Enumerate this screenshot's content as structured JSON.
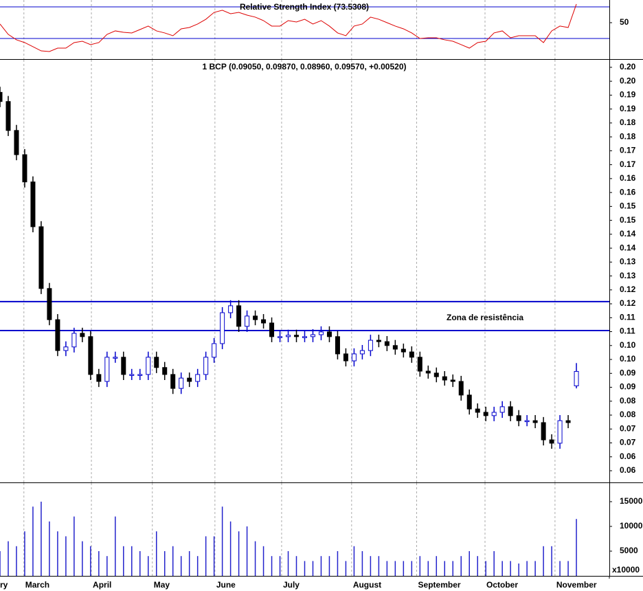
{
  "chart_data": [
    {
      "type": "line",
      "title": "Relative Strength Index (73.5308)",
      "color": "#dd0000",
      "values": [
        48.3,
        35.2,
        28.3,
        24.8,
        19.6,
        14.3,
        13.5,
        17.8,
        17.8,
        24.8,
        26.5,
        22.2,
        24.8,
        35.2,
        39.6,
        37.8,
        37,
        41.3,
        45.7,
        39.6,
        37,
        33.5,
        42.2,
        43.9,
        48.3,
        54.3,
        63,
        65.7,
        61.3,
        63,
        59.6,
        57,
        52.6,
        45.7,
        45.7,
        52.6,
        50.9,
        54.3,
        48.3,
        52.6,
        45.7,
        37,
        33.5,
        45.7,
        48.3,
        57,
        54.3,
        50,
        45.7,
        42.2,
        37,
        30,
        30.9,
        30.9,
        28.3,
        26.5,
        22.2,
        17.8,
        24.8,
        26.5,
        37,
        39.6,
        30.9,
        33.5,
        33.5,
        33.5,
        24.8,
        39.6,
        45.7,
        43.9,
        73.5308
      ],
      "xlim": [
        0,
        74
      ],
      "ylim": [
        3.9,
        78.7
      ],
      "yticks": [
        50
      ],
      "hlines": [
        70,
        30
      ],
      "hline_color": "#0000cc"
    },
    {
      "type": "candlestick",
      "title": "1 BCP (0.09050, 0.09870, 0.08960, 0.09570, +0.00520)",
      "up_color": "#0000cc",
      "down_color": "#000000",
      "open": [
        0.196,
        0.1927,
        0.1823,
        0.1736,
        0.1638,
        0.1477,
        0.1255,
        0.1143,
        0.1032,
        0.1045,
        0.1094,
        0.1082,
        0.0946,
        0.0921,
        0.1008,
        0.1008,
        0.0946,
        0.0946,
        0.0946,
        0.1008,
        0.0971,
        0.0946,
        0.0896,
        0.0933,
        0.0921,
        0.0946,
        0.1008,
        0.1057,
        0.1168,
        0.1193,
        0.1119,
        0.1156,
        0.1143,
        0.1131,
        0.1082,
        0.1082,
        0.1087,
        0.1082,
        0.1082,
        0.1089,
        0.1099,
        0.1082,
        0.102,
        0.0995,
        0.102,
        0.1032,
        0.1069,
        0.1064,
        0.105,
        0.1037,
        0.1027,
        0.1008,
        0.0958,
        0.0951,
        0.0938,
        0.0926,
        0.0921,
        0.0872,
        0.0822,
        0.081,
        0.0798,
        0.081,
        0.083,
        0.0798,
        0.078,
        0.078,
        0.0773,
        0.0711,
        0.0699,
        0.078,
        0.0905
      ],
      "high": [
        0.198,
        0.1947,
        0.1843,
        0.1756,
        0.1658,
        0.1497,
        0.1275,
        0.1163,
        0.1065,
        0.1114,
        0.1114,
        0.1102,
        0.0966,
        0.1028,
        0.1028,
        0.1028,
        0.0966,
        0.0966,
        0.1028,
        0.1028,
        0.0991,
        0.0966,
        0.0953,
        0.0953,
        0.0966,
        0.1028,
        0.1077,
        0.1188,
        0.1213,
        0.1213,
        0.1176,
        0.1176,
        0.1163,
        0.1151,
        0.1102,
        0.1107,
        0.1107,
        0.1102,
        0.1109,
        0.1119,
        0.1119,
        0.1102,
        0.104,
        0.104,
        0.1052,
        0.1089,
        0.1089,
        0.1084,
        0.107,
        0.1057,
        0.1047,
        0.1028,
        0.0978,
        0.0971,
        0.0958,
        0.0946,
        0.0941,
        0.0892,
        0.0842,
        0.083,
        0.083,
        0.085,
        0.085,
        0.0818,
        0.08,
        0.08,
        0.0793,
        0.0731,
        0.08,
        0.08,
        0.0987
      ],
      "low": [
        0.1907,
        0.1803,
        0.1716,
        0.1618,
        0.1457,
        0.1235,
        0.1123,
        0.1012,
        0.1012,
        0.1025,
        0.1062,
        0.0926,
        0.0901,
        0.0901,
        0.0988,
        0.0926,
        0.0926,
        0.0926,
        0.0926,
        0.0951,
        0.0926,
        0.0876,
        0.0876,
        0.0901,
        0.0901,
        0.0926,
        0.0988,
        0.1037,
        0.1148,
        0.1099,
        0.1099,
        0.1123,
        0.1111,
        0.1062,
        0.1062,
        0.1062,
        0.1062,
        0.1062,
        0.1062,
        0.1069,
        0.1062,
        0.1,
        0.0975,
        0.0975,
        0.1,
        0.1012,
        0.1044,
        0.103,
        0.1017,
        0.1007,
        0.0988,
        0.0938,
        0.0931,
        0.0918,
        0.0906,
        0.0901,
        0.0852,
        0.0802,
        0.079,
        0.0778,
        0.0778,
        0.079,
        0.0778,
        0.076,
        0.076,
        0.0753,
        0.0691,
        0.0679,
        0.0679,
        0.0753,
        0.0896
      ],
      "close": [
        0.1927,
        0.1823,
        0.1736,
        0.1638,
        0.1477,
        0.1255,
        0.1143,
        0.1032,
        0.1045,
        0.1094,
        0.1082,
        0.0946,
        0.0921,
        0.1008,
        0.1008,
        0.0946,
        0.0946,
        0.0946,
        0.1008,
        0.0971,
        0.0946,
        0.0896,
        0.0933,
        0.0921,
        0.0946,
        0.1008,
        0.1057,
        0.1168,
        0.1193,
        0.1119,
        0.1156,
        0.1143,
        0.1131,
        0.1082,
        0.1082,
        0.1087,
        0.1082,
        0.1082,
        0.1089,
        0.1099,
        0.1082,
        0.102,
        0.0995,
        0.102,
        0.1032,
        0.1069,
        0.1064,
        0.105,
        0.1037,
        0.1027,
        0.1008,
        0.0958,
        0.0951,
        0.0938,
        0.0926,
        0.0921,
        0.0872,
        0.0822,
        0.081,
        0.0798,
        0.081,
        0.083,
        0.0798,
        0.078,
        0.078,
        0.0773,
        0.0711,
        0.0699,
        0.078,
        0.0773,
        0.0957
      ],
      "xlim": [
        0,
        74
      ],
      "ylim": [
        0.0558,
        0.2077
      ],
      "yticks": [
        {
          "value": 0.06,
          "label": "0.06"
        },
        {
          "value": 0.065,
          "label": "0.06"
        },
        {
          "value": 0.07,
          "label": "0.07"
        },
        {
          "value": 0.075,
          "label": "0.07"
        },
        {
          "value": 0.08,
          "label": "0.08"
        },
        {
          "value": 0.085,
          "label": "0.08"
        },
        {
          "value": 0.09,
          "label": "0.09"
        },
        {
          "value": 0.095,
          "label": "0.09"
        },
        {
          "value": 0.1,
          "label": "0.10"
        },
        {
          "value": 0.105,
          "label": "0.10"
        },
        {
          "value": 0.11,
          "label": "0.11"
        },
        {
          "value": 0.115,
          "label": "0.11"
        },
        {
          "value": 0.12,
          "label": "0.12"
        },
        {
          "value": 0.125,
          "label": "0.12"
        },
        {
          "value": 0.13,
          "label": "0.13"
        },
        {
          "value": 0.135,
          "label": "0.13"
        },
        {
          "value": 0.14,
          "label": "0.14"
        },
        {
          "value": 0.145,
          "label": "0.14"
        },
        {
          "value": 0.15,
          "label": "0.15"
        },
        {
          "value": 0.155,
          "label": "0.15"
        },
        {
          "value": 0.16,
          "label": "0.16"
        },
        {
          "value": 0.165,
          "label": "0.16"
        },
        {
          "value": 0.17,
          "label": "0.17"
        },
        {
          "value": 0.175,
          "label": "0.17"
        },
        {
          "value": 0.18,
          "label": "0.18"
        },
        {
          "value": 0.185,
          "label": "0.18"
        },
        {
          "value": 0.19,
          "label": "0.19"
        },
        {
          "value": 0.195,
          "label": "0.19"
        },
        {
          "value": 0.2,
          "label": "0.20"
        },
        {
          "value": 0.205,
          "label": "0.20"
        }
      ],
      "hlines": [
        0.1208,
        0.1104
      ],
      "hline_color": "#0000cc",
      "annotation": "Zona de resistência",
      "annotation_color": "#0000cc"
    },
    {
      "type": "bar",
      "color": "#2222cc",
      "unit_label": "x10000",
      "values": [
        5000,
        7000,
        6000,
        9000,
        14000,
        15000,
        11000,
        9000,
        8000,
        12000,
        7000,
        6000,
        5000,
        4000,
        12000,
        6000,
        6000,
        5000,
        4000,
        9000,
        5000,
        6000,
        4000,
        5000,
        4000,
        8000,
        8000,
        14000,
        11000,
        9000,
        10000,
        7000,
        6000,
        4000,
        4000,
        5000,
        4000,
        3000,
        3000,
        4000,
        4000,
        5000,
        3000,
        6000,
        5000,
        4000,
        4000,
        3000,
        3000,
        3000,
        3000,
        4000,
        3000,
        4000,
        3000,
        3000,
        4000,
        5000,
        4000,
        3000,
        5000,
        3000,
        3000,
        2500,
        3000,
        3000,
        6000,
        6000,
        3000,
        3000,
        11500
      ],
      "xlim": [
        0,
        74
      ],
      "ylim": [
        0,
        18750
      ],
      "yticks": [
        5000,
        10000,
        15000
      ],
      "xticks": [
        {
          "value": -0.3,
          "label": "ry"
        },
        {
          "value": 2.9,
          "label": "March"
        },
        {
          "value": 11.1,
          "label": "April"
        },
        {
          "value": 18.5,
          "label": "May"
        },
        {
          "value": 26.1,
          "label": "June"
        },
        {
          "value": 34.2,
          "label": "July"
        },
        {
          "value": 42.7,
          "label": "August"
        },
        {
          "value": 50.6,
          "label": "September"
        },
        {
          "value": 58.9,
          "label": "October"
        },
        {
          "value": 67.4,
          "label": "November"
        }
      ]
    }
  ]
}
